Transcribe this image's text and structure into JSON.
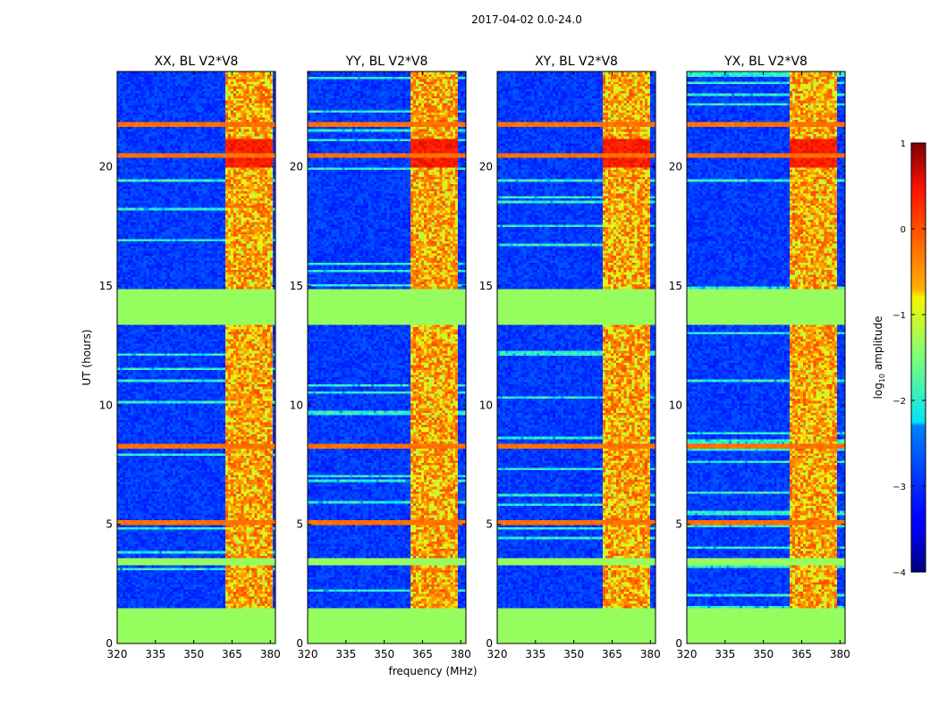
{
  "chart_data": {
    "type": "heatmap",
    "title": "2017-04-02 0.0-24.0",
    "xlabel": "frequency (MHz)",
    "ylabel": "UT (hours)",
    "xlim": [
      320,
      382
    ],
    "ylim": [
      0,
      24
    ],
    "xticks": [
      "320",
      "335",
      "350",
      "365",
      "380"
    ],
    "yticks": [
      "0",
      "5",
      "10",
      "15",
      "20"
    ],
    "panels": [
      {
        "title": "XX, BL V2*V8",
        "rfi_channels_MHz": [
          [
            362,
            381
          ]
        ]
      },
      {
        "title": "YY, BL V2*V8",
        "rfi_channels_MHz": [
          [
            360,
            379
          ]
        ]
      },
      {
        "title": "XY, BL V2*V8",
        "rfi_channels_MHz": [
          [
            361,
            380
          ]
        ]
      },
      {
        "title": "YX, BL V2*V8",
        "rfi_channels_MHz": [
          [
            360,
            379
          ]
        ]
      }
    ],
    "flagged_ut_hours": [
      [
        0,
        1.5
      ],
      [
        3.3,
        3.6
      ],
      [
        13.4,
        14.9
      ]
    ],
    "strong_rfi_ut_hours": [
      5.1,
      8.3,
      20.5,
      21.8
    ],
    "colorbar": {
      "label": "log10 amplitude",
      "label_main": "log",
      "label_sub": "10",
      "label_rest": " amplitude",
      "min": -4,
      "max": 1,
      "ticks": [
        "1",
        "0",
        "−1",
        "−2",
        "−3",
        "−4"
      ],
      "colormap": "jet"
    }
  }
}
